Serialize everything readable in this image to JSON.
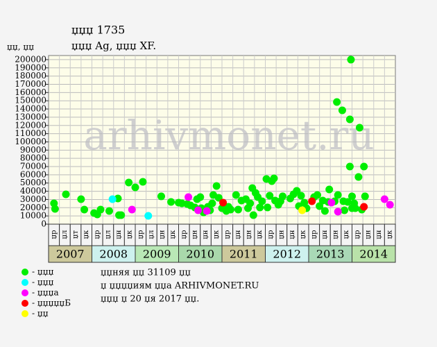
{
  "chart_data": {
    "type": "scatter",
    "title": "џџџ 1735",
    "subtitle": "џџџ Ag, џџџ XF.",
    "y_label": "џџ, џџ",
    "watermark": "arhivmonet.ru",
    "xlim": [
      0,
      32
    ],
    "ylim": [
      0,
      205000
    ],
    "yticks": [
      0,
      10000,
      20000,
      30000,
      40000,
      50000,
      60000,
      70000,
      80000,
      90000,
      100000,
      110000,
      120000,
      130000,
      140000,
      150000,
      160000,
      170000,
      180000,
      190000,
      200000
    ],
    "grid": true,
    "column_labels": [
      "џр",
      "џл",
      "џт",
      "џк",
      "џр",
      "џл",
      "џн",
      "џк",
      "џр",
      "џл",
      "џн",
      "џк",
      "џр",
      "џн",
      "џн",
      "џк",
      "џр",
      "џн",
      "џн",
      "џк",
      "џр",
      "џн",
      "џн",
      "џк",
      "џр",
      "џн",
      "џн",
      "џк",
      "џр",
      "џн",
      "џн",
      "џк"
    ],
    "years": [
      "2007",
      "2008",
      "2009",
      "2010",
      "2011",
      "2012",
      "2013",
      "2014"
    ],
    "year_colors": [
      "#cdc99c",
      "#cdf1ee",
      "#b9e8b6",
      "#a9d8ab",
      "#cdc99c",
      "#cdf1ee",
      "#a9d8b6",
      "#b9e2a9"
    ],
    "series": [
      {
        "name": "- џџџ",
        "color": "#00ee00",
        "x": [
          0.5,
          0.6,
          1.6,
          3.0,
          3.3,
          4.2,
          4.5,
          4.8,
          5.6,
          6.4,
          6.5,
          6.7,
          7.4,
          8.0,
          8.7,
          10.4,
          11.3,
          12.0,
          12.3,
          12.8,
          13.1,
          13.5,
          13.7,
          14.0,
          14.1,
          14.3,
          14.7,
          14.9,
          15.1,
          15.2,
          15.5,
          15.7,
          16.0,
          16.4,
          16.6,
          16.8,
          17.3,
          17.5,
          17.8,
          18.2,
          18.4,
          18.6,
          18.8,
          18.9,
          19.1,
          19.3,
          19.5,
          19.7,
          20.1,
          20.2,
          20.4,
          20.6,
          20.8,
          20.9,
          21.2,
          21.4,
          21.6,
          22.3,
          22.6,
          22.9,
          23.1,
          23.3,
          23.6,
          23.8,
          24.5,
          24.8,
          25.0,
          25.3,
          25.5,
          25.8,
          25.9,
          26.4,
          26.6,
          26.7,
          27.1,
          27.2,
          27.3,
          27.6,
          27.8,
          27.9,
          27.8,
          28.0,
          28.0,
          28.2,
          28.3,
          28.7,
          28.6,
          28.9,
          29.1,
          29.2
        ],
        "values": [
          25300,
          18600,
          36300,
          30400,
          17700,
          13500,
          11800,
          17700,
          16000,
          31200,
          11000,
          11000,
          50600,
          44700,
          51500,
          33800,
          27000,
          26200,
          25300,
          24500,
          22800,
          20300,
          30400,
          32900,
          19400,
          14300,
          21100,
          16900,
          25300,
          35400,
          46400,
          32100,
          19400,
          16000,
          21100,
          17700,
          35400,
          17700,
          28700,
          30400,
          19400,
          25300,
          43900,
          11000,
          38000,
          32900,
          20300,
          27800,
          54900,
          20300,
          34600,
          52300,
          55700,
          28700,
          23600,
          27800,
          33800,
          31200,
          36300,
          40500,
          21900,
          34600,
          26200,
          19400,
          32900,
          35400,
          21900,
          28700,
          16000,
          27000,
          42200,
          27800,
          148500,
          35400,
          138400,
          27800,
          16900,
          27000,
          127400,
          200000,
          70000,
          33800,
          19400,
          25300,
          19400,
          117300,
          57400,
          17700,
          70000,
          33800
        ]
      },
      {
        "name": "- џџџ",
        "color": "#00ffff",
        "x": [
          5.9,
          9.2
        ],
        "values": [
          30400,
          10100
        ]
      },
      {
        "name": "- џџџа",
        "color": "#ff00ff",
        "x": [
          7.7,
          12.9,
          13.8,
          14.6,
          26.1,
          26.7,
          31.0,
          31.5
        ],
        "values": [
          17700,
          32900,
          16900,
          16000,
          26200,
          15200,
          30400,
          23600
        ]
      },
      {
        "name": "- џџџџџБ",
        "color": "#ff0000",
        "x": [
          16.1,
          24.3,
          29.1
        ],
        "values": [
          26200,
          27800,
          21100
        ]
      },
      {
        "name": "- џџ",
        "color": "#ffff00",
        "x": [
          23.4
        ],
        "values": [
          16900
        ]
      }
    ],
    "notes": [
      "џџняя џџ 31109 џџ",
      "џ џџџџиям џџа ARHIVMONET.RU",
      "џџџ џ 20 џя 2017 џџ."
    ]
  }
}
